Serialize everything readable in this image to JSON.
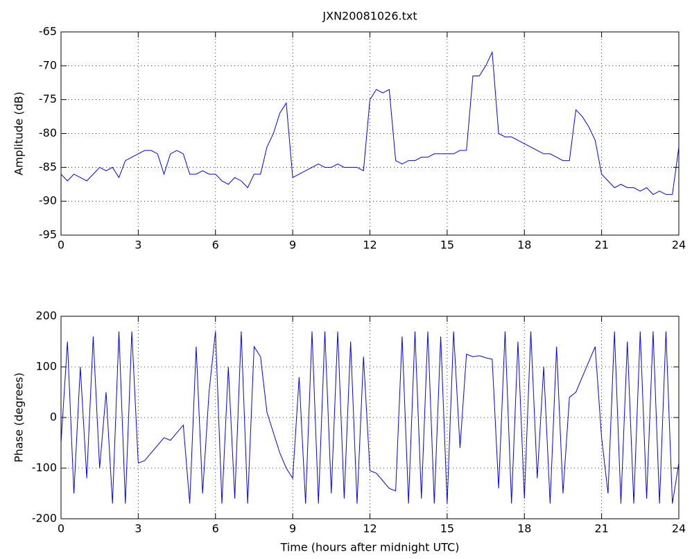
{
  "chart_data": [
    {
      "type": "line",
      "title": "JXN20081026.txt",
      "y_label": "Amplitude (dB)",
      "x": [
        0,
        0.25,
        0.5,
        0.75,
        1,
        1.25,
        1.5,
        1.75,
        2,
        2.25,
        2.5,
        2.75,
        3,
        3.25,
        3.5,
        3.75,
        4,
        4.25,
        4.5,
        4.75,
        5,
        5.25,
        5.5,
        5.75,
        6,
        6.25,
        6.5,
        6.75,
        7,
        7.25,
        7.5,
        7.75,
        8,
        8.25,
        8.5,
        8.75,
        9,
        9.25,
        9.5,
        9.75,
        10,
        10.25,
        10.5,
        10.75,
        11,
        11.25,
        11.5,
        11.75,
        12,
        12.25,
        12.5,
        12.75,
        13,
        13.25,
        13.5,
        13.75,
        14,
        14.25,
        14.5,
        14.75,
        15,
        15.25,
        15.5,
        15.75,
        16,
        16.25,
        16.5,
        16.75,
        17,
        17.25,
        17.5,
        17.75,
        18,
        18.25,
        18.5,
        18.75,
        19,
        19.25,
        19.5,
        19.75,
        20,
        20.25,
        20.5,
        20.75,
        21,
        21.25,
        21.5,
        21.75,
        22,
        22.25,
        22.5,
        22.75,
        23,
        23.25,
        23.5,
        23.75,
        24
      ],
      "series": [
        {
          "color": "#0000ff",
          "values": [
            -86,
            -87,
            -86,
            -86.5,
            -87,
            -86,
            -85,
            -85.5,
            -85,
            -86.5,
            -84,
            -83.5,
            -83,
            -82.5,
            -82.5,
            -83,
            -86,
            -83,
            -82.5,
            -83,
            -86,
            -86,
            -85.5,
            -86,
            -86,
            -87,
            -87.5,
            -86.5,
            -87,
            -88,
            -86,
            -86,
            -82,
            -80,
            -77,
            -75.5,
            -86.5,
            -86,
            -85.5,
            -85,
            -84.5,
            -85,
            -85,
            -84.5,
            -85,
            -85,
            -85,
            -85.5,
            -75,
            -73.5,
            -74,
            -73.5,
            -84,
            -84.5,
            -84,
            -84,
            -83.5,
            -83.5,
            -83,
            -83,
            -83,
            -83,
            -82.5,
            -82.5,
            -71.5,
            -71.5,
            -70,
            -68,
            -80,
            -80.5,
            -80.5,
            -81,
            -81.5,
            -82,
            -82.5,
            -83,
            -83,
            -83.5,
            -84,
            -84,
            -76.5,
            -77.5,
            -79,
            -81,
            -86,
            -87,
            -88,
            -87.5,
            -88,
            -88,
            -88.5,
            -88,
            -89,
            -88.5,
            -89,
            -89,
            -82
          ]
        }
      ],
      "xlim": [
        0,
        24
      ],
      "xticks": [
        0,
        3,
        6,
        9,
        12,
        15,
        18,
        21,
        24
      ],
      "ylim": [
        -95,
        -65
      ],
      "yticks": [
        -95,
        -90,
        -85,
        -80,
        -75,
        -70,
        -65
      ],
      "grid": true
    },
    {
      "type": "line",
      "x_label": "Time (hours after midnight UTC)",
      "y_label": "Phase (degrees)",
      "x": [
        0,
        0.25,
        0.5,
        0.75,
        1,
        1.25,
        1.5,
        1.75,
        2,
        2.25,
        2.5,
        2.75,
        3,
        3.25,
        3.5,
        3.75,
        4,
        4.25,
        4.5,
        4.75,
        5,
        5.25,
        5.5,
        5.75,
        6,
        6.25,
        6.5,
        6.75,
        7,
        7.25,
        7.5,
        7.75,
        8,
        8.25,
        8.5,
        8.75,
        9,
        9.25,
        9.5,
        9.75,
        10,
        10.25,
        10.5,
        10.75,
        11,
        11.25,
        11.5,
        11.75,
        12,
        12.25,
        12.5,
        12.75,
        13,
        13.25,
        13.5,
        13.75,
        14,
        14.25,
        14.5,
        14.75,
        15,
        15.25,
        15.5,
        15.75,
        16,
        16.25,
        16.5,
        16.75,
        17,
        17.25,
        17.5,
        17.75,
        18,
        18.25,
        18.5,
        18.75,
        19,
        19.25,
        19.5,
        19.75,
        20,
        20.25,
        20.5,
        20.75,
        21,
        21.25,
        21.5,
        21.75,
        22,
        22.25,
        22.5,
        22.75,
        23,
        23.25,
        23.5,
        23.75,
        24
      ],
      "series": [
        {
          "color": "#0000ff",
          "values": [
            -50,
            150,
            -150,
            100,
            -120,
            160,
            -100,
            50,
            -170,
            170,
            -170,
            170,
            -90,
            -85,
            -70,
            -55,
            -40,
            -45,
            -30,
            -15,
            -170,
            140,
            -150,
            50,
            170,
            -170,
            100,
            -160,
            170,
            -170,
            140,
            120,
            10,
            -30,
            -70,
            -100,
            -120,
            80,
            -170,
            170,
            -170,
            170,
            -150,
            170,
            -160,
            150,
            -170,
            120,
            -105,
            -110,
            -125,
            -140,
            -145,
            160,
            -170,
            170,
            -160,
            170,
            -170,
            160,
            -170,
            170,
            -60,
            125,
            120,
            122,
            118,
            115,
            -140,
            170,
            -170,
            150,
            -160,
            170,
            -120,
            100,
            -170,
            140,
            -150,
            40,
            50,
            80,
            110,
            140,
            -40,
            -150,
            170,
            -170,
            150,
            -170,
            170,
            -160,
            170,
            -170,
            170,
            -170,
            -90
          ]
        }
      ],
      "xlim": [
        0,
        24
      ],
      "xticks": [
        0,
        3,
        6,
        9,
        12,
        15,
        18,
        21,
        24
      ],
      "ylim": [
        -200,
        200
      ],
      "yticks": [
        -200,
        -100,
        0,
        100,
        200
      ],
      "grid": true
    }
  ]
}
